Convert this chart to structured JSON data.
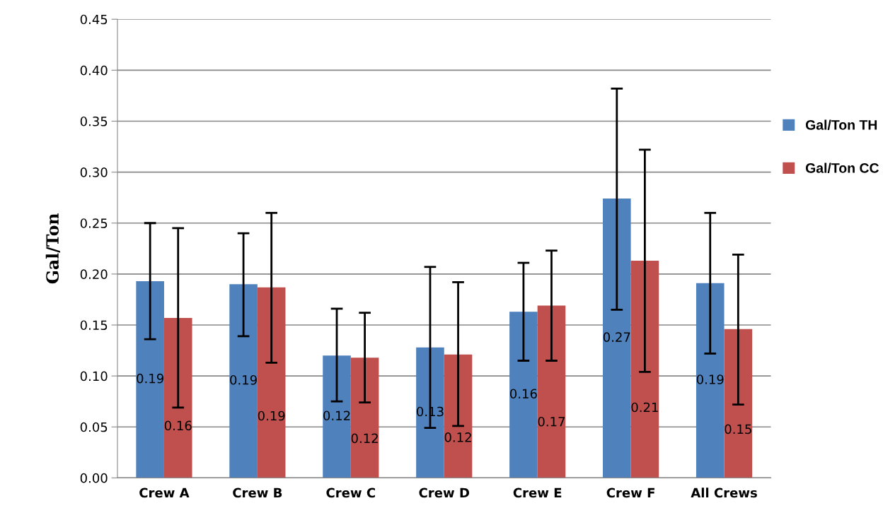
{
  "chart_data": {
    "type": "bar",
    "ylabel": "Gal/Ton",
    "categories": [
      "Crew A",
      "Crew B",
      "Crew C",
      "Crew D",
      "Crew E",
      "Crew F",
      "All Crews"
    ],
    "series": [
      {
        "name": "Gal/Ton TH",
        "color": "#4f81bd",
        "values": [
          0.193,
          0.19,
          0.12,
          0.128,
          0.163,
          0.274,
          0.191
        ],
        "errors": [
          [
            0.136,
            0.25
          ],
          [
            0.139,
            0.24
          ],
          [
            0.075,
            0.166
          ],
          [
            0.049,
            0.207
          ],
          [
            0.115,
            0.211
          ],
          [
            0.165,
            0.382
          ],
          [
            0.122,
            0.26
          ]
        ],
        "value_labels": [
          "0.19",
          "0.19",
          "0.12",
          "0.13",
          "0.16",
          "0.27",
          "0.19"
        ]
      },
      {
        "name": "Gal/Ton CC",
        "color": "#c0504d",
        "values": [
          0.157,
          0.187,
          0.118,
          0.121,
          0.169,
          0.213,
          0.146
        ],
        "errors": [
          [
            0.069,
            0.245
          ],
          [
            0.113,
            0.26
          ],
          [
            0.074,
            0.162
          ],
          [
            0.051,
            0.192
          ],
          [
            0.115,
            0.223
          ],
          [
            0.104,
            0.322
          ],
          [
            0.072,
            0.219
          ]
        ],
        "value_labels": [
          "0.16",
          "0.19",
          "0.12",
          "0.12",
          "0.17",
          "0.21",
          "0.15"
        ]
      }
    ],
    "ylim": [
      0,
      0.45
    ],
    "yticks": [
      {
        "value": 0,
        "label": "0.00"
      },
      {
        "value": 0.05,
        "label": "0.05"
      },
      {
        "value": 0.1,
        "label": "0.10"
      },
      {
        "value": 0.15,
        "label": "0.15"
      },
      {
        "value": 0.2,
        "label": "0.20"
      },
      {
        "value": 0.25,
        "label": "0.25"
      },
      {
        "value": 0.3,
        "label": "0.30"
      },
      {
        "value": 0.35,
        "label": "0.35"
      },
      {
        "value": 0.4,
        "label": "0.40"
      },
      {
        "value": 0.45,
        "label": "0.45"
      }
    ],
    "grid": "y",
    "legend": "right"
  }
}
